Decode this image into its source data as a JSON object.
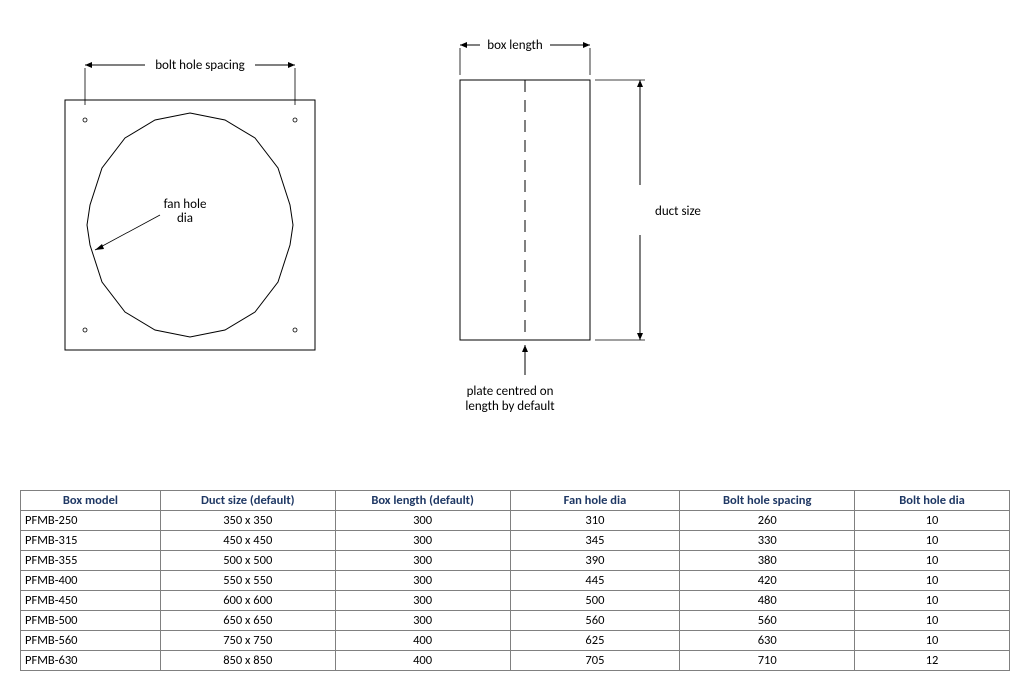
{
  "diagrams": {
    "front": {
      "dim_label": "bolt hole spacing",
      "callout": {
        "line1": "fan hole",
        "line2": "dia"
      }
    },
    "side": {
      "top_dim": "box length",
      "right_dim": "duct size",
      "bottom_note": {
        "line1": "plate centred on",
        "line2": "length by default"
      }
    },
    "style": {
      "stroke": "#000000",
      "stroke_width": 1,
      "bolt_hole_radius": 1.5,
      "arrow_size": 6
    }
  },
  "table": {
    "headers": [
      "Box model",
      "Duct size (default)",
      "Box length (default)",
      "Fan hole dia",
      "Bolt hole spacing",
      "Bolt hole dia"
    ],
    "rows": [
      [
        "PFMB-250",
        "350 x 350",
        "300",
        "310",
        "260",
        "10"
      ],
      [
        "PFMB-315",
        "450 x 450",
        "300",
        "345",
        "330",
        "10"
      ],
      [
        "PFMB-355",
        "500 x 500",
        "300",
        "390",
        "380",
        "10"
      ],
      [
        "PFMB-400",
        "550 x 550",
        "300",
        "445",
        "420",
        "10"
      ],
      [
        "PFMB-450",
        "600 x 600",
        "300",
        "500",
        "480",
        "10"
      ],
      [
        "PFMB-500",
        "650 x 650",
        "300",
        "560",
        "560",
        "10"
      ],
      [
        "PFMB-560",
        "750 x 750",
        "400",
        "625",
        "630",
        "10"
      ],
      [
        "PFMB-630",
        "850 x 850",
        "400",
        "705",
        "710",
        "12"
      ]
    ],
    "col_widths": [
      "140px",
      "175px",
      "175px",
      "170px",
      "175px",
      "155px"
    ],
    "header_color": "#1f3864",
    "border_color": "#808080"
  }
}
